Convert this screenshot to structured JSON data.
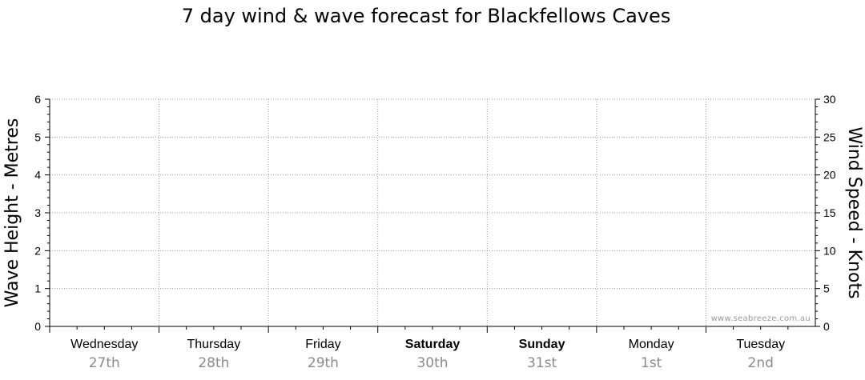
{
  "chart_data": {
    "type": "line",
    "title": "7 day wind & wave forecast for Blackfellows Caves",
    "ylabel_left": "Wave Height - Metres",
    "ylabel_right": "Wind Speed - Knots",
    "ylim_left": [
      0,
      6
    ],
    "ylim_right": [
      0,
      30
    ],
    "yticks_left": [
      "0",
      "1",
      "2",
      "3",
      "4",
      "5",
      "6"
    ],
    "yticks_right": [
      "0",
      "5",
      "10",
      "15",
      "20",
      "25",
      "30"
    ],
    "days": [
      {
        "name": "Wednesday",
        "date": "27th",
        "bold": false
      },
      {
        "name": "Thursday",
        "date": "28th",
        "bold": false
      },
      {
        "name": "Friday",
        "date": "29th",
        "bold": false
      },
      {
        "name": "Saturday",
        "date": "30th",
        "bold": true
      },
      {
        "name": "Sunday",
        "date": "31st",
        "bold": true
      },
      {
        "name": "Monday",
        "date": "1st",
        "bold": false
      },
      {
        "name": "Tuesday",
        "date": "2nd",
        "bold": false
      }
    ],
    "grid": true,
    "series": [],
    "watermark": "www.seabreeze.com.au"
  }
}
